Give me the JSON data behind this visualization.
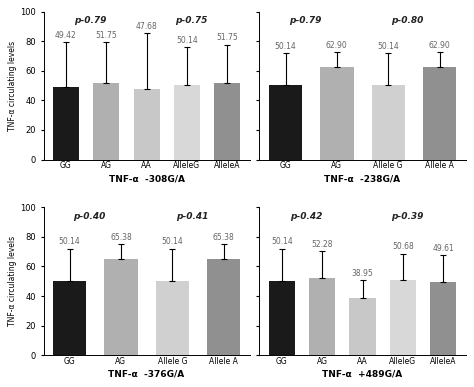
{
  "panels": [
    {
      "title": "TNF-α  -308G/A",
      "categories": [
        "GG",
        "AG",
        "AA",
        "AlleleG",
        "AlleleA"
      ],
      "values": [
        49.42,
        51.75,
        47.68,
        50.14,
        51.75
      ],
      "errors": [
        30,
        28,
        38,
        26,
        26
      ],
      "colors": [
        "#1a1a1a",
        "#b0b0b0",
        "#c8c8c8",
        "#d8d8d8",
        "#909090"
      ],
      "p_labels": [
        [
          "p-0.79",
          1.0
        ],
        [
          "p-0.75",
          3.2
        ]
      ],
      "ylim": [
        0,
        100
      ],
      "yticks": [
        0,
        20,
        40,
        60,
        80,
        100
      ],
      "p_xcoords": [
        1.0,
        3.2
      ]
    },
    {
      "title": "TNF-α  -238G/A",
      "categories": [
        "GG",
        "AG",
        "Allele G",
        "Allele A"
      ],
      "values": [
        50.14,
        62.9,
        50.14,
        62.9
      ],
      "errors": [
        22,
        10,
        22,
        10
      ],
      "colors": [
        "#1a1a1a",
        "#b0b0b0",
        "#d0d0d0",
        "#909090"
      ],
      "p_labels": [
        [
          "p-0.79",
          0.5
        ],
        [
          "p-0.80",
          2.5
        ]
      ],
      "ylim": [
        0,
        100
      ],
      "yticks": [
        0,
        20,
        40,
        60,
        80,
        100
      ],
      "p_xcoords": [
        0.5,
        2.5
      ]
    },
    {
      "title": "TNF-α  -376G/A",
      "categories": [
        "GG",
        "AG",
        "Allele G",
        "Allele A"
      ],
      "values": [
        50.14,
        65.38,
        50.14,
        65.38
      ],
      "errors": [
        22,
        10,
        22,
        10
      ],
      "colors": [
        "#1a1a1a",
        "#b0b0b0",
        "#d0d0d0",
        "#909090"
      ],
      "p_labels": [
        [
          "p-0.40",
          0.5
        ],
        [
          "p-0.41",
          2.5
        ]
      ],
      "ylim": [
        0,
        100
      ],
      "yticks": [
        0,
        20,
        40,
        60,
        80,
        100
      ],
      "p_xcoords": [
        0.5,
        2.5
      ]
    },
    {
      "title": "TNF-α  +489G/A",
      "categories": [
        "GG",
        "AG",
        "AA",
        "AlleleG",
        "AlleleA"
      ],
      "values": [
        50.14,
        52.28,
        38.95,
        50.68,
        49.61
      ],
      "errors": [
        22,
        18,
        12,
        18,
        18
      ],
      "colors": [
        "#1a1a1a",
        "#b0b0b0",
        "#c8c8c8",
        "#d8d8d8",
        "#909090"
      ],
      "p_labels": [
        [
          "p-0.42",
          1.0
        ],
        [
          "p-0.39",
          3.2
        ]
      ],
      "ylim": [
        0,
        100
      ],
      "yticks": [
        0,
        20,
        40,
        60,
        80,
        100
      ],
      "p_xcoords": [
        1.0,
        3.2
      ]
    }
  ],
  "ylabel": "TNF-α circulating levels",
  "bar_width": 0.65,
  "figure_bg": "#ffffff",
  "label_color": "#666666",
  "value_fontsize": 5.5,
  "p_fontsize": 6.5,
  "xlabel_fontsize": 6.5,
  "ylabel_fontsize": 5.5,
  "xtick_fontsize": 5.5,
  "ytick_fontsize": 6
}
